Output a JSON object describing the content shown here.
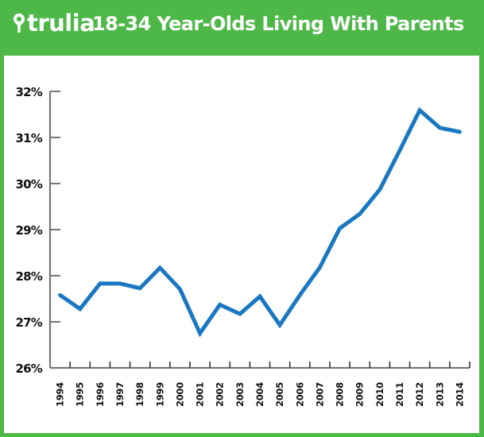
{
  "header": {
    "brand": "trulia",
    "brand_icon": "map-pin-icon",
    "title": "18-34 Year-Olds Living With Parents",
    "background_color": "#4db848"
  },
  "chart_data": {
    "type": "line",
    "title": "18-34 Year-Olds Living With Parents",
    "xlabel": "",
    "ylabel": "",
    "x": [
      1994,
      1995,
      1996,
      1997,
      1998,
      1999,
      2000,
      2001,
      2002,
      2003,
      2004,
      2005,
      2006,
      2007,
      2008,
      2009,
      2010,
      2011,
      2012,
      2013,
      2014
    ],
    "categories": [
      "1994",
      "1995",
      "1996",
      "1997",
      "1998",
      "1999",
      "2000",
      "2001",
      "2002",
      "2003",
      "2004",
      "2005",
      "2006",
      "2007",
      "2008",
      "2009",
      "2010",
      "2011",
      "2012",
      "2013",
      "2014"
    ],
    "series": [
      {
        "name": "18-34 Year-Olds Living With Parents (%)",
        "color": "#1a78c2",
        "values": [
          27.58,
          27.28,
          27.83,
          27.83,
          27.73,
          28.17,
          27.71,
          26.75,
          27.37,
          27.17,
          27.55,
          26.93,
          27.58,
          28.18,
          29.03,
          29.34,
          29.87,
          30.72,
          31.59,
          31.21,
          31.12
        ]
      }
    ],
    "ylim": [
      26,
      32
    ],
    "yticks": [
      26,
      27,
      28,
      29,
      30,
      31,
      32
    ],
    "ytick_labels": [
      "26%",
      "27%",
      "28%",
      "29%",
      "30%",
      "31%",
      "32%"
    ],
    "grid": false,
    "legend": null
  }
}
